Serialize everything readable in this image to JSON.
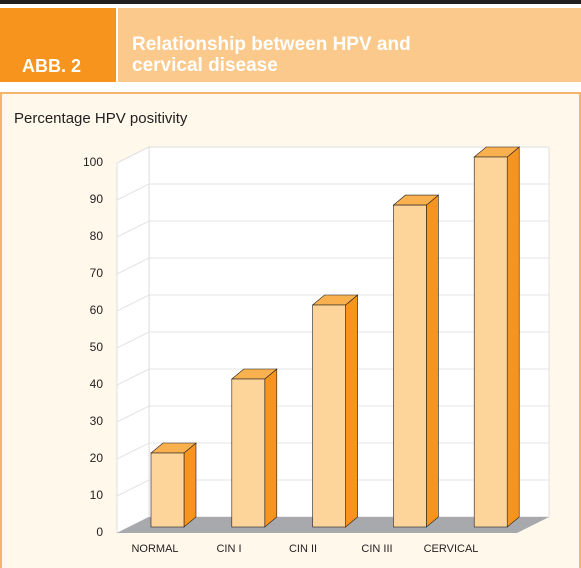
{
  "figure_label": "ABB. 2",
  "chart_data": {
    "type": "bar3d",
    "title": "Relationship between HPV and cervical disease",
    "y_label": "Percentage HPV positivity",
    "categories": [
      "NORMAL",
      "CIN I",
      "CIN II",
      "CIN III",
      "CERVICAL"
    ],
    "values": [
      20,
      40,
      60,
      87,
      100
    ],
    "color": "#fdd49a",
    "side_color": "#f7941d",
    "top_color": "#f9b14f",
    "ylim": [
      0,
      100
    ],
    "yticks": [
      0,
      10,
      20,
      30,
      40,
      50,
      60,
      70,
      80,
      90,
      100
    ],
    "grid": true
  }
}
